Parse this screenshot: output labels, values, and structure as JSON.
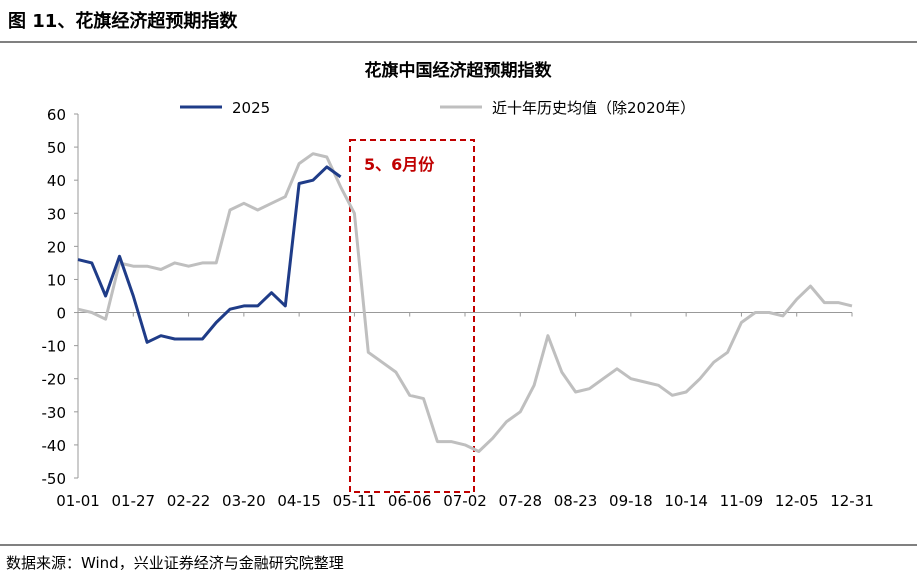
{
  "header": "图 11、花旗经济超预期指数",
  "source": "数据来源：Wind，兴业证券经济与金融研究院整理",
  "chart_data": {
    "type": "line",
    "title": "花旗中国经济超预期指数",
    "annotation": "5、6月份",
    "categories": [
      "01-01",
      null,
      null,
      null,
      "01-27",
      null,
      null,
      null,
      "02-22",
      null,
      null,
      null,
      "03-20",
      null,
      null,
      null,
      "04-15",
      null,
      null,
      null,
      "05-11",
      null,
      null,
      null,
      "06-06",
      null,
      null,
      null,
      "07-02",
      null,
      null,
      null,
      "07-28",
      null,
      null,
      null,
      "08-23",
      null,
      null,
      null,
      "09-18",
      null,
      null,
      null,
      "10-14",
      null,
      null,
      null,
      "11-09",
      null,
      null,
      null,
      "12-05",
      null,
      null,
      null,
      "12-31"
    ],
    "series": [
      {
        "name": "2025",
        "color": "#1f3c88",
        "width": 3,
        "values": [
          16,
          15,
          5,
          17,
          5,
          -9,
          -7,
          -8,
          -8,
          -8,
          -3,
          1,
          2,
          2,
          6,
          2,
          39,
          40,
          44,
          41,
          null,
          null,
          null,
          null,
          null,
          null,
          null,
          null,
          null,
          null,
          null,
          null,
          null,
          null,
          null,
          null,
          null,
          null,
          null,
          null,
          null,
          null,
          null,
          null,
          null,
          null,
          null,
          null,
          null,
          null,
          null,
          null,
          null,
          null,
          null,
          null,
          null
        ]
      },
      {
        "name": "近十年历史均值（除2020年）",
        "color": "#bfbfbf",
        "width": 3,
        "values": [
          1,
          0,
          -2,
          15,
          14,
          14,
          13,
          15,
          14,
          15,
          15,
          31,
          33,
          31,
          33,
          35,
          45,
          48,
          47,
          38,
          30,
          -12,
          -15,
          -18,
          -25,
          -26,
          -39,
          -39,
          -40,
          -42,
          -38,
          -33,
          -30,
          -22,
          -7,
          -18,
          -24,
          -23,
          -20,
          -17,
          -20,
          -21,
          -22,
          -25,
          -24,
          -20,
          -15,
          -12,
          -3,
          0,
          0,
          -1,
          4,
          8,
          3,
          3,
          2
        ]
      }
    ],
    "ylim": [
      -50,
      60
    ],
    "yticks": [
      -50,
      -40,
      -30,
      -20,
      -10,
      0,
      10,
      20,
      30,
      40,
      50,
      60
    ]
  }
}
